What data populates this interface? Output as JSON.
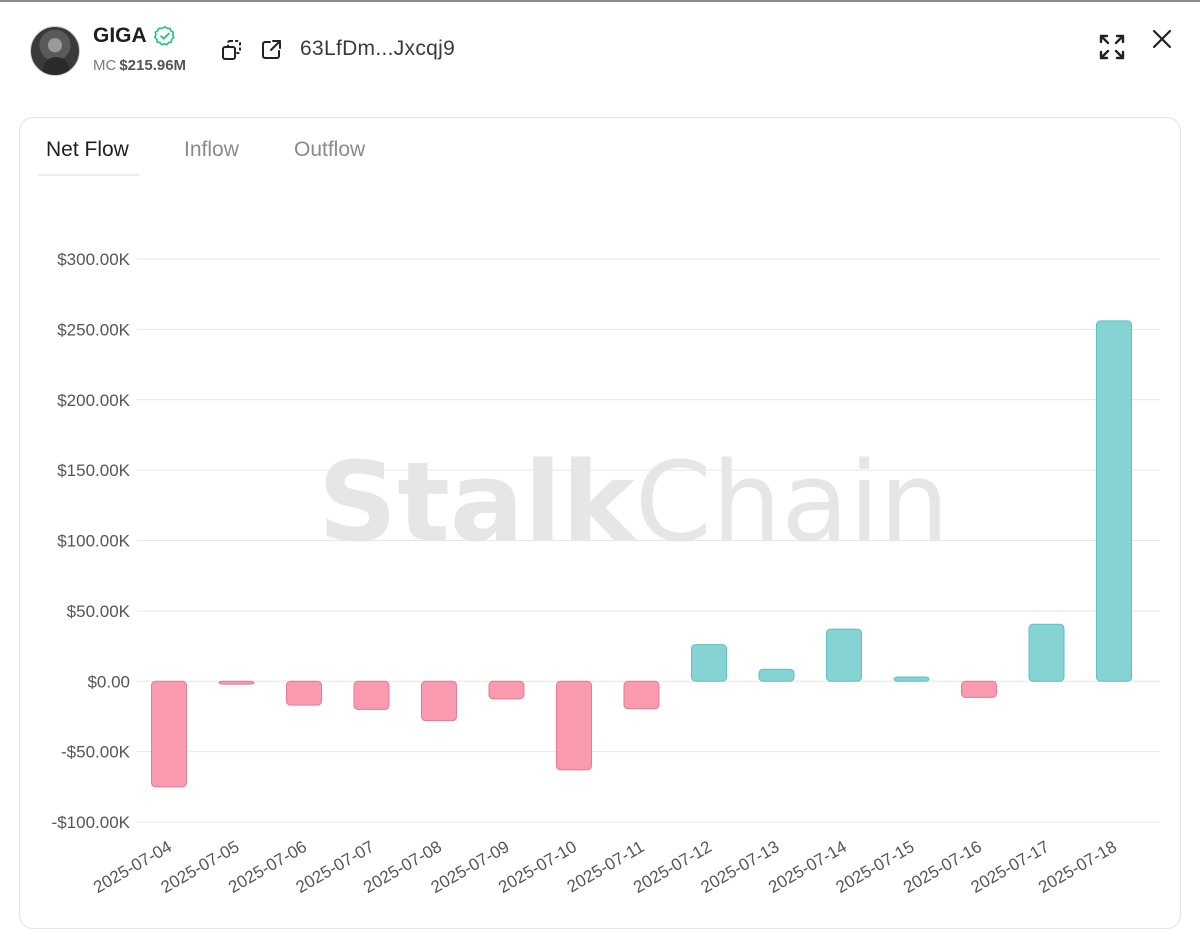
{
  "token": {
    "name": "GIGA",
    "mc_label": "MC",
    "mc_value": "$215.96M",
    "address": "63LfDm...Jxcqj9"
  },
  "icons": {
    "verified": "verified-check-icon",
    "copy": "copy-icon",
    "external": "external-link-icon",
    "expand": "expand-icon",
    "close": "close-icon"
  },
  "tabs": [
    {
      "label": "Net Flow",
      "active": true
    },
    {
      "label": "Inflow",
      "active": false
    },
    {
      "label": "Outflow",
      "active": false
    }
  ],
  "watermark": {
    "bold": "Stalk",
    "light": "Chain"
  },
  "colors": {
    "positive": "#86d3d3",
    "positive_stroke": "#5fbfbf",
    "negative": "#f99aaf",
    "negative_stroke": "#e57a93",
    "grid": "#e6e6e6",
    "verified": "#2bbf8a"
  },
  "chart_data": {
    "type": "bar",
    "categories": [
      "2025-07-04",
      "2025-07-05",
      "2025-07-06",
      "2025-07-07",
      "2025-07-08",
      "2025-07-09",
      "2025-07-10",
      "2025-07-11",
      "2025-07-12",
      "2025-07-13",
      "2025-07-14",
      "2025-07-15",
      "2025-07-16",
      "2025-07-17",
      "2025-07-18"
    ],
    "values": [
      -75000,
      -2000,
      -17000,
      -20000,
      -28000,
      -12500,
      -63000,
      -19500,
      26000,
      8500,
      37000,
      3000,
      -11500,
      40500,
      256000
    ],
    "ylim": [
      -100000,
      300000
    ],
    "yticks": [
      300000,
      250000,
      200000,
      150000,
      100000,
      50000,
      0,
      -50000,
      -100000
    ],
    "ytick_labels": [
      "$300.00K",
      "$250.00K",
      "$200.00K",
      "$150.00K",
      "$100.00K",
      "$50.00K",
      "$0.00",
      "-$50.00K",
      "-$100.00K"
    ],
    "grid": true,
    "title": "",
    "xlabel": "",
    "ylabel": ""
  }
}
